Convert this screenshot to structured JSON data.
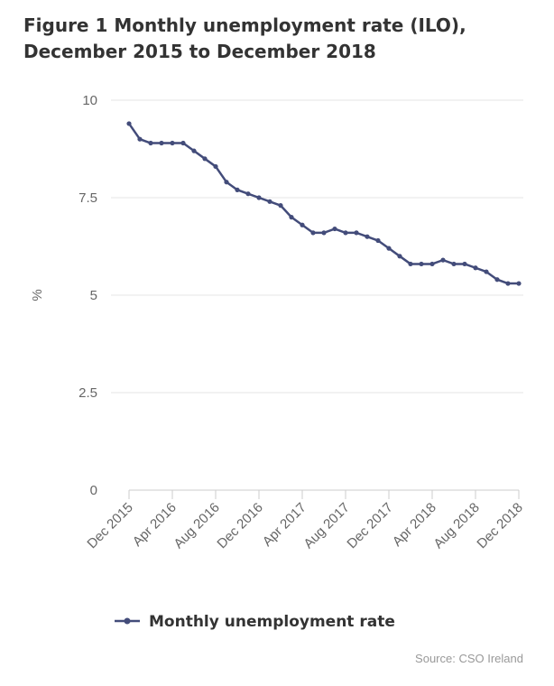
{
  "chart_data": {
    "type": "line",
    "title": "Figure 1 Monthly unemployment rate (ILO), December 2015 to December 2018",
    "ylabel": "%",
    "xlabel": "",
    "ylim": [
      0,
      10
    ],
    "y_ticks": [
      0,
      2.5,
      5,
      7.5,
      10
    ],
    "y_tick_labels": [
      "0",
      "2.5",
      "5",
      "7.5",
      "10"
    ],
    "x_tick_labels": [
      "Dec 2015",
      "Apr 2016",
      "Aug 2016",
      "Dec 2016",
      "Apr 2017",
      "Aug 2017",
      "Dec 2017",
      "Apr 2018",
      "Aug 2018",
      "Dec 2018"
    ],
    "x": [
      "Dec 2015",
      "Jan 2016",
      "Feb 2016",
      "Mar 2016",
      "Apr 2016",
      "May 2016",
      "Jun 2016",
      "Jul 2016",
      "Aug 2016",
      "Sep 2016",
      "Oct 2016",
      "Nov 2016",
      "Dec 2016",
      "Jan 2017",
      "Feb 2017",
      "Mar 2017",
      "Apr 2017",
      "May 2017",
      "Jun 2017",
      "Jul 2017",
      "Aug 2017",
      "Sep 2017",
      "Oct 2017",
      "Nov 2017",
      "Dec 2017",
      "Jan 2018",
      "Feb 2018",
      "Mar 2018",
      "Apr 2018",
      "May 2018",
      "Jun 2018",
      "Jul 2018",
      "Aug 2018",
      "Sep 2018",
      "Oct 2018",
      "Nov 2018",
      "Dec 2018"
    ],
    "series": [
      {
        "name": "Monthly unemployment rate",
        "color": "#434c7a",
        "values": [
          9.4,
          9.0,
          8.9,
          8.9,
          8.9,
          8.9,
          8.7,
          8.5,
          8.3,
          7.9,
          7.7,
          7.6,
          7.5,
          7.4,
          7.3,
          7.0,
          6.8,
          6.6,
          6.6,
          6.7,
          6.6,
          6.6,
          6.5,
          6.4,
          6.2,
          6.0,
          5.8,
          5.8,
          5.8,
          5.9,
          5.8,
          5.8,
          5.7,
          5.6,
          5.4,
          5.3,
          5.3
        ]
      }
    ],
    "grid": true,
    "legend_position": "bottom",
    "source": "Source: CSO Ireland"
  }
}
